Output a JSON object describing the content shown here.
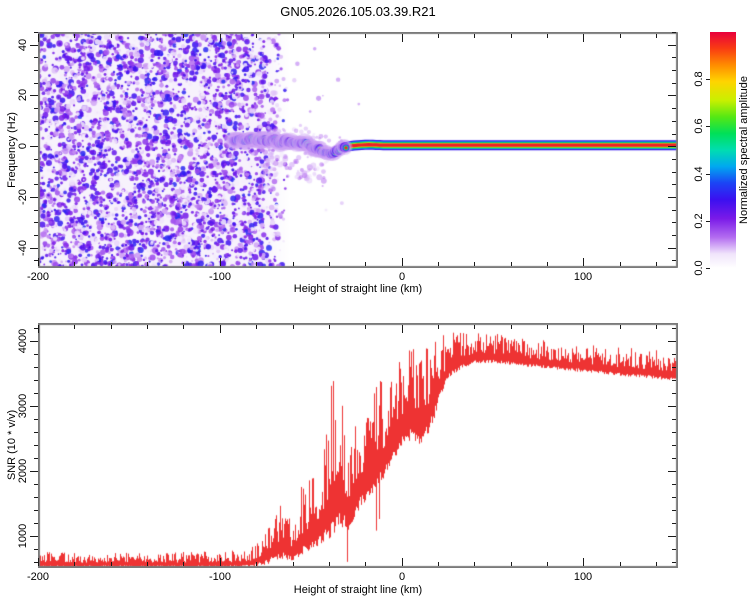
{
  "title": "GN05.2026.105.03.39.R21",
  "chart_data": [
    {
      "type": "heatmap",
      "title": "GN05.2026.105.03.39.R21",
      "xlabel": "Height of straight line (km)",
      "ylabel": "Frequency (Hz)",
      "xlim": [
        -200,
        152
      ],
      "ylim": [
        -48,
        45
      ],
      "x_major_ticks": [
        -200,
        -100,
        0,
        100
      ],
      "x_tick_labels": [
        "-200",
        "-100",
        "0",
        "100"
      ],
      "x_minor_step": 20,
      "y_major_ticks": [
        -40,
        -20,
        0,
        20,
        40
      ],
      "y_tick_labels": [
        "-40",
        "-20",
        "0",
        "20",
        "40"
      ],
      "y_minor_step": 5,
      "grid": false,
      "colorbar": {
        "label": "Normalized spectral amplitude",
        "range": [
          0,
          1
        ],
        "ticks": [
          0,
          0.2,
          0.4,
          0.6,
          0.8
        ],
        "tick_labels": [
          "0.0",
          "0.2",
          "0.4",
          "0.6",
          "0.8"
        ],
        "stops": [
          [
            0,
            "#ffffff"
          ],
          [
            0.06,
            "#f0e4fb"
          ],
          [
            0.13,
            "#b36cf0"
          ],
          [
            0.21,
            "#7a1ae8"
          ],
          [
            0.29,
            "#3b10f0"
          ],
          [
            0.36,
            "#1b44f5"
          ],
          [
            0.43,
            "#00a8f0"
          ],
          [
            0.5,
            "#00ddb0"
          ],
          [
            0.57,
            "#00e058"
          ],
          [
            0.64,
            "#55e814"
          ],
          [
            0.71,
            "#c8f000"
          ],
          [
            0.79,
            "#ffd400"
          ],
          [
            0.86,
            "#ff8c00"
          ],
          [
            0.93,
            "#f93c12"
          ],
          [
            1,
            "#e8003c"
          ]
        ]
      },
      "noise_field": {
        "x_from": -200,
        "x_to": -78,
        "fade_to": -62,
        "blob_count": 3650,
        "dark_count": 650,
        "seed": 11
      },
      "signal_trace": {
        "comment_units": "points are [height_km, frequency_Hz] of the occultation signal ridge",
        "points": [
          [
            -93,
            1.8
          ],
          [
            -89,
            2.5
          ],
          [
            -86,
            2.1
          ],
          [
            -83,
            2.8
          ],
          [
            -79,
            2.3
          ],
          [
            -76,
            3.0
          ],
          [
            -73,
            2.0
          ],
          [
            -70,
            2.6
          ],
          [
            -67,
            1.2
          ],
          [
            -64,
            2.2
          ],
          [
            -61,
            1.6
          ],
          [
            -58,
            0.7
          ],
          [
            -55,
            1.5
          ],
          [
            -52,
            0.9
          ],
          [
            -49,
            -0.3
          ],
          [
            -46,
            -1.2
          ],
          [
            -43,
            -2.2
          ],
          [
            -40,
            -3.0
          ],
          [
            -37,
            -2.5
          ],
          [
            -34,
            -1.2
          ],
          [
            -31,
            -0.4
          ],
          [
            -28,
            0.1
          ],
          [
            -24,
            0.4
          ],
          [
            -18,
            0.6
          ],
          [
            -10,
            0.4
          ],
          [
            0,
            0.4
          ],
          [
            152,
            0.4
          ]
        ],
        "blobby_until": -30,
        "seed": 7
      }
    },
    {
      "type": "line",
      "xlabel": "Height of straight line (km)",
      "ylabel": "SNR (10 * v/v)",
      "xlim": [
        -200,
        152
      ],
      "ylim": [
        500,
        4280
      ],
      "x_major_ticks": [
        -200,
        -100,
        0,
        100
      ],
      "x_tick_labels": [
        "-200",
        "-100",
        "0",
        "100"
      ],
      "x_minor_step": 20,
      "y_major_ticks": [
        1000,
        2000,
        3000,
        4000
      ],
      "y_tick_labels": [
        "1000",
        "2000",
        "3000",
        "4000"
      ],
      "y_minor_step": 200,
      "grid": false,
      "color": "#ee3333",
      "series": [
        {
          "name": "SNR",
          "comment_units": "envelope points are [height_km, lower_SNR, upper_SNR] of the noisy red trace",
          "envelope": [
            [
              -200,
              510,
              745
            ],
            [
              -160,
              510,
              745
            ],
            [
              -120,
              510,
              750
            ],
            [
              -96,
              510,
              760
            ],
            [
              -86,
              515,
              790
            ],
            [
              -80,
              530,
              860
            ],
            [
              -75,
              550,
              1100
            ],
            [
              -70,
              590,
              1500
            ],
            [
              -65,
              630,
              1560
            ],
            [
              -60,
              610,
              1330
            ],
            [
              -55,
              680,
              1800
            ],
            [
              -50,
              780,
              1950
            ],
            [
              -46,
              840,
              2100
            ],
            [
              -42,
              900,
              2750
            ],
            [
              -38,
              980,
              3480
            ],
            [
              -35,
              1050,
              3560
            ],
            [
              -32,
              1080,
              3150
            ],
            [
              -29,
              1080,
              2400
            ],
            [
              -26,
              1250,
              2700
            ],
            [
              -22,
              1450,
              3000
            ],
            [
              -18,
              1580,
              3050
            ],
            [
              -14,
              1680,
              3620
            ],
            [
              -10,
              1850,
              3350
            ],
            [
              -6,
              2050,
              3450
            ],
            [
              -2,
              2250,
              3700
            ],
            [
              2,
              2430,
              3900
            ],
            [
              6,
              2480,
              4060
            ],
            [
              10,
              2380,
              3950
            ],
            [
              14,
              2520,
              3980
            ],
            [
              18,
              2800,
              4060
            ],
            [
              22,
              3200,
              4100
            ],
            [
              27,
              3450,
              4140
            ],
            [
              33,
              3580,
              4160
            ],
            [
              40,
              3640,
              4150
            ],
            [
              50,
              3660,
              4120
            ],
            [
              65,
              3620,
              4060
            ],
            [
              80,
              3570,
              4010
            ],
            [
              100,
              3520,
              3970
            ],
            [
              120,
              3460,
              3910
            ],
            [
              140,
              3410,
              3870
            ],
            [
              152,
              3390,
              3850
            ]
          ],
          "seed": 5
        }
      ]
    }
  ],
  "frame_color": "#7a7a7a"
}
